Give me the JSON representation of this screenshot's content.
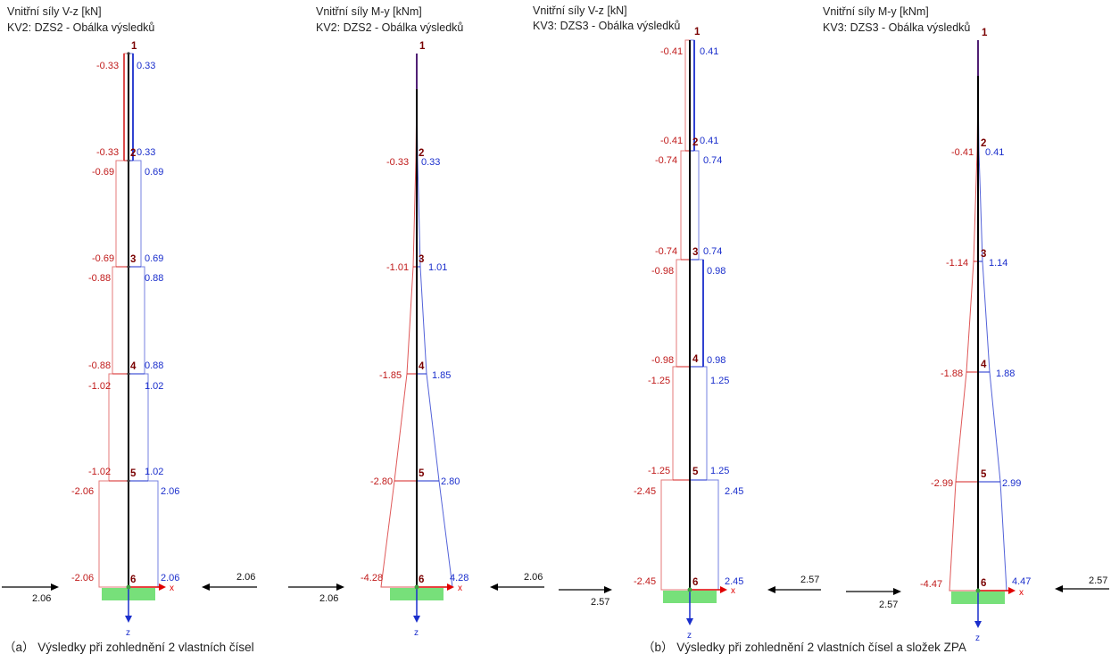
{
  "colors": {
    "negative": "#d42020",
    "positive": "#1a2ecc",
    "member": "#000000",
    "support": "#77e07a",
    "node": "#7a0000"
  },
  "panels": [
    {
      "title": [
        "Vnitřní síly V-z [kN]",
        "KV2: DZS2 - Obálka výsledků"
      ],
      "nodes": [
        "1",
        "2",
        "3",
        "4",
        "5",
        "6"
      ],
      "neg_labels": [
        "-0.33",
        "-0.33",
        "-0.69",
        "-0.69",
        "-0.88",
        "-0.88",
        "-1.02",
        "-1.02",
        "-2.06",
        "-2.06"
      ],
      "pos_labels": [
        "0.33",
        "0.33",
        "0.69",
        "0.69",
        "0.88",
        "0.88",
        "1.02",
        "1.02",
        "2.06",
        "2.06"
      ]
    },
    {
      "title": [
        "Vnitřní síly M-y [kNm]",
        "KV2: DZS2 - Obálka výsledků"
      ],
      "nodes": [
        "1",
        "2",
        "3",
        "4",
        "5",
        "6"
      ],
      "neg_labels": [
        "-0.33",
        "-1.01",
        "-1.85",
        "-2.80",
        "-4.28"
      ],
      "pos_labels": [
        "0.33",
        "1.01",
        "1.85",
        "2.80",
        "4.28"
      ]
    },
    {
      "title": [
        "Vnitřní síly V-z [kN]",
        "KV3: DZS3 - Obálka výsledků"
      ],
      "nodes": [
        "1",
        "2",
        "3",
        "4",
        "5",
        "6"
      ],
      "neg_labels": [
        "-0.41",
        "-0.41",
        "-0.74",
        "-0.74",
        "-0.98",
        "-0.98",
        "-1.25",
        "-1.25",
        "-2.45",
        "-2.45"
      ],
      "pos_labels": [
        "0.41",
        "0.41",
        "0.74",
        "0.74",
        "0.98",
        "0.98",
        "1.25",
        "1.25",
        "2.45",
        "2.45"
      ]
    },
    {
      "title": [
        "Vnitřní síly M-y [kNm]",
        "KV3: DZS3 - Obálka výsledků"
      ],
      "nodes": [
        "1",
        "2",
        "3",
        "4",
        "5",
        "6"
      ],
      "neg_labels": [
        "-0.41",
        "-1.14",
        "-1.88",
        "-2.99",
        "-4.47"
      ],
      "pos_labels": [
        "0.41",
        "1.14",
        "1.88",
        "2.99",
        "4.47"
      ]
    }
  ],
  "axis_labels": {
    "x": "x",
    "z": "z"
  },
  "forces": [
    "2.06",
    "2.06",
    "2.06",
    "2.06",
    "2.57",
    "2.57",
    "2.57",
    "2.57"
  ],
  "captions": [
    "（a） Výsledky při zohlednění 2 vlastních čísel",
    "（b） Výsledky při zohlednění 2 vlastních čísel a složek ZPA"
  ]
}
